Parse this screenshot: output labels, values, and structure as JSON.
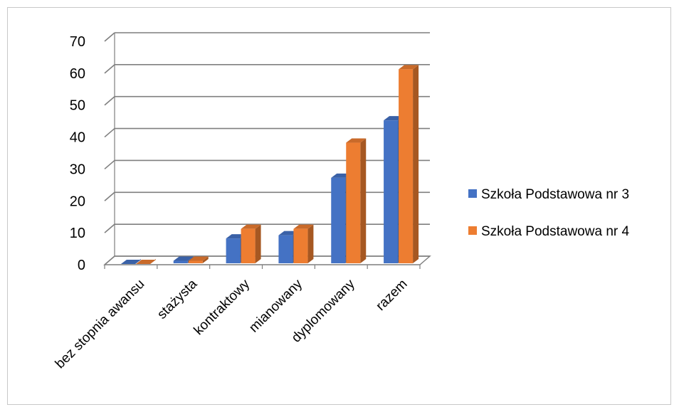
{
  "chart_data": {
    "type": "bar",
    "title": "",
    "xlabel": "",
    "ylabel": "",
    "ylim": [
      0,
      70
    ],
    "yticks": [
      0,
      10,
      20,
      30,
      40,
      50,
      60,
      70
    ],
    "grid": true,
    "legend_position": "right",
    "categories": [
      "bez stopnia awansu",
      "stażysta",
      "kontraktowy",
      "mianowany",
      "dyplomowany",
      "razem"
    ],
    "series": [
      {
        "name": "Szkoła Podstawowa nr 3",
        "color": "#4472C4",
        "values": [
          0,
          1,
          8,
          9,
          27,
          45
        ]
      },
      {
        "name": "Szkoła Podstawowa nr 4",
        "color": "#ED7D31",
        "values": [
          0,
          1,
          11,
          11,
          38,
          61
        ]
      }
    ]
  }
}
